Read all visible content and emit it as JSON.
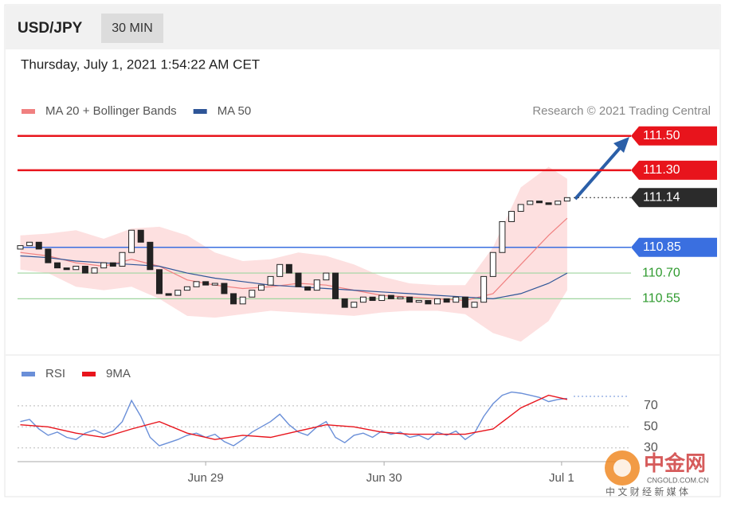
{
  "header": {
    "symbol": "USD/JPY",
    "timeframe": "30 MIN",
    "datetime": "Thursday, July 1, 2021 1:54:22 AM CET"
  },
  "watermark": {
    "brand": "中金网",
    "domain": "CNGOLD.COM.CN",
    "tagline": "中 文 财 经 新 媒 体"
  },
  "chart_data": [
    {
      "type": "candlestick",
      "attribution": "Research © 2021 Trading Central",
      "opens": [
        110.84,
        110.86,
        110.88,
        110.84,
        110.76,
        110.73,
        110.72,
        110.74,
        110.7,
        110.73,
        110.76,
        110.74,
        110.82,
        110.95,
        110.88,
        110.72,
        110.58,
        110.57,
        110.6,
        110.62,
        110.65,
        110.63,
        110.64,
        110.58,
        110.52,
        110.56,
        110.6,
        110.63,
        110.68,
        110.75,
        110.7,
        110.62,
        110.6,
        110.66,
        110.7,
        110.55,
        110.5,
        110.53,
        110.56,
        110.54,
        110.57,
        110.55,
        110.56,
        110.53,
        110.54,
        110.52,
        110.55,
        110.53,
        110.56,
        110.5,
        110.53,
        110.68,
        110.82,
        111.0,
        111.06,
        111.1,
        111.12,
        111.11,
        111.1,
        111.12
      ],
      "closes": [
        110.86,
        110.88,
        110.84,
        110.76,
        110.73,
        110.72,
        110.74,
        110.7,
        110.73,
        110.76,
        110.74,
        110.82,
        110.95,
        110.88,
        110.72,
        110.58,
        110.57,
        110.6,
        110.62,
        110.65,
        110.63,
        110.64,
        110.58,
        110.52,
        110.56,
        110.6,
        110.63,
        110.68,
        110.75,
        110.7,
        110.62,
        110.6,
        110.66,
        110.7,
        110.55,
        110.5,
        110.53,
        110.56,
        110.54,
        110.57,
        110.55,
        110.56,
        110.53,
        110.54,
        110.52,
        110.55,
        110.53,
        110.56,
        110.5,
        110.53,
        110.68,
        110.82,
        111.0,
        111.06,
        111.1,
        111.12,
        111.11,
        111.1,
        111.12,
        111.14
      ],
      "up_color": "#ffffff",
      "down_color": "#222222",
      "series": [
        {
          "name": "MA 20 + Bollinger Bands",
          "color": "#f08080",
          "band_color": "#fde0e0",
          "x": [
            0,
            3,
            6,
            9,
            12,
            15,
            18,
            21,
            24,
            27,
            30,
            33,
            36,
            39,
            42,
            45,
            48,
            51,
            54,
            57,
            59
          ],
          "values": [
            110.82,
            110.8,
            110.76,
            110.74,
            110.78,
            110.74,
            110.66,
            110.63,
            110.61,
            110.62,
            110.64,
            110.63,
            110.6,
            110.57,
            110.56,
            110.55,
            110.54,
            110.58,
            110.75,
            110.92,
            111.02
          ],
          "upper": [
            110.92,
            110.93,
            110.95,
            110.9,
            110.96,
            110.97,
            110.92,
            110.82,
            110.77,
            110.78,
            110.82,
            110.8,
            110.75,
            110.68,
            110.64,
            110.63,
            110.63,
            110.85,
            111.2,
            111.32,
            111.25
          ],
          "lower": [
            110.72,
            110.7,
            110.62,
            110.6,
            110.62,
            110.55,
            110.45,
            110.44,
            110.46,
            110.48,
            110.47,
            110.46,
            110.45,
            110.47,
            110.48,
            110.48,
            110.46,
            110.35,
            110.3,
            110.42,
            110.6
          ]
        },
        {
          "name": "MA 50",
          "color": "#2e5597",
          "x": [
            0,
            3,
            6,
            9,
            12,
            15,
            18,
            21,
            24,
            27,
            30,
            33,
            36,
            39,
            42,
            45,
            48,
            51,
            54,
            57,
            59
          ],
          "values": [
            110.8,
            110.79,
            110.77,
            110.76,
            110.75,
            110.74,
            110.7,
            110.67,
            110.65,
            110.63,
            110.62,
            110.61,
            110.6,
            110.59,
            110.58,
            110.57,
            110.56,
            110.55,
            110.58,
            110.64,
            110.7
          ]
        }
      ],
      "levels": [
        {
          "value": 111.5,
          "label": "111.50",
          "color": "#e8141c",
          "kind": "tag"
        },
        {
          "value": 111.3,
          "label": "111.30",
          "color": "#e8141c",
          "kind": "tag"
        },
        {
          "value": 111.14,
          "label": "111.14",
          "color": "#2b2b2b",
          "kind": "dotted-tag"
        },
        {
          "value": 110.85,
          "label": "110.85",
          "color": "#3a6fe0",
          "kind": "tag"
        },
        {
          "value": 110.7,
          "label": "110.70",
          "color": "#2e9a2e",
          "kind": "text"
        },
        {
          "value": 110.55,
          "label": "110.55",
          "color": "#2e9a2e",
          "kind": "text"
        }
      ],
      "xlim": [
        -0.3,
        59.7
      ],
      "ylim": [
        110.25,
        111.55
      ]
    },
    {
      "type": "line",
      "series": [
        {
          "name": "RSI",
          "color": "#6a8fd8",
          "values": [
            55,
            57,
            48,
            42,
            45,
            40,
            38,
            44,
            47,
            43,
            46,
            55,
            75,
            60,
            40,
            32,
            35,
            38,
            42,
            44,
            40,
            43,
            36,
            32,
            38,
            45,
            50,
            55,
            62,
            52,
            45,
            42,
            50,
            55,
            40,
            35,
            42,
            44,
            40,
            46,
            43,
            45,
            40,
            42,
            38,
            45,
            42,
            46,
            38,
            44,
            60,
            72,
            80,
            83,
            82,
            80,
            78,
            74,
            76,
            77
          ]
        },
        {
          "name": "9MA",
          "color": "#e8141c",
          "x": [
            0,
            3,
            6,
            9,
            12,
            15,
            18,
            21,
            24,
            27,
            30,
            33,
            36,
            39,
            42,
            45,
            48,
            51,
            54,
            57,
            59
          ],
          "values": [
            52,
            50,
            44,
            40,
            48,
            55,
            44,
            38,
            42,
            40,
            46,
            52,
            50,
            45,
            43,
            43,
            43,
            48,
            68,
            80,
            76
          ]
        }
      ],
      "xlim": [
        -0.3,
        59.7
      ],
      "ylim": [
        20,
        85
      ],
      "yticks": [
        70,
        50,
        30
      ],
      "xticks": [
        {
          "value": 20.0,
          "label": "Jun 29"
        },
        {
          "value": 39.25,
          "label": "Jun 30"
        },
        {
          "value": 58.4,
          "label": "Jul 1"
        }
      ]
    }
  ]
}
